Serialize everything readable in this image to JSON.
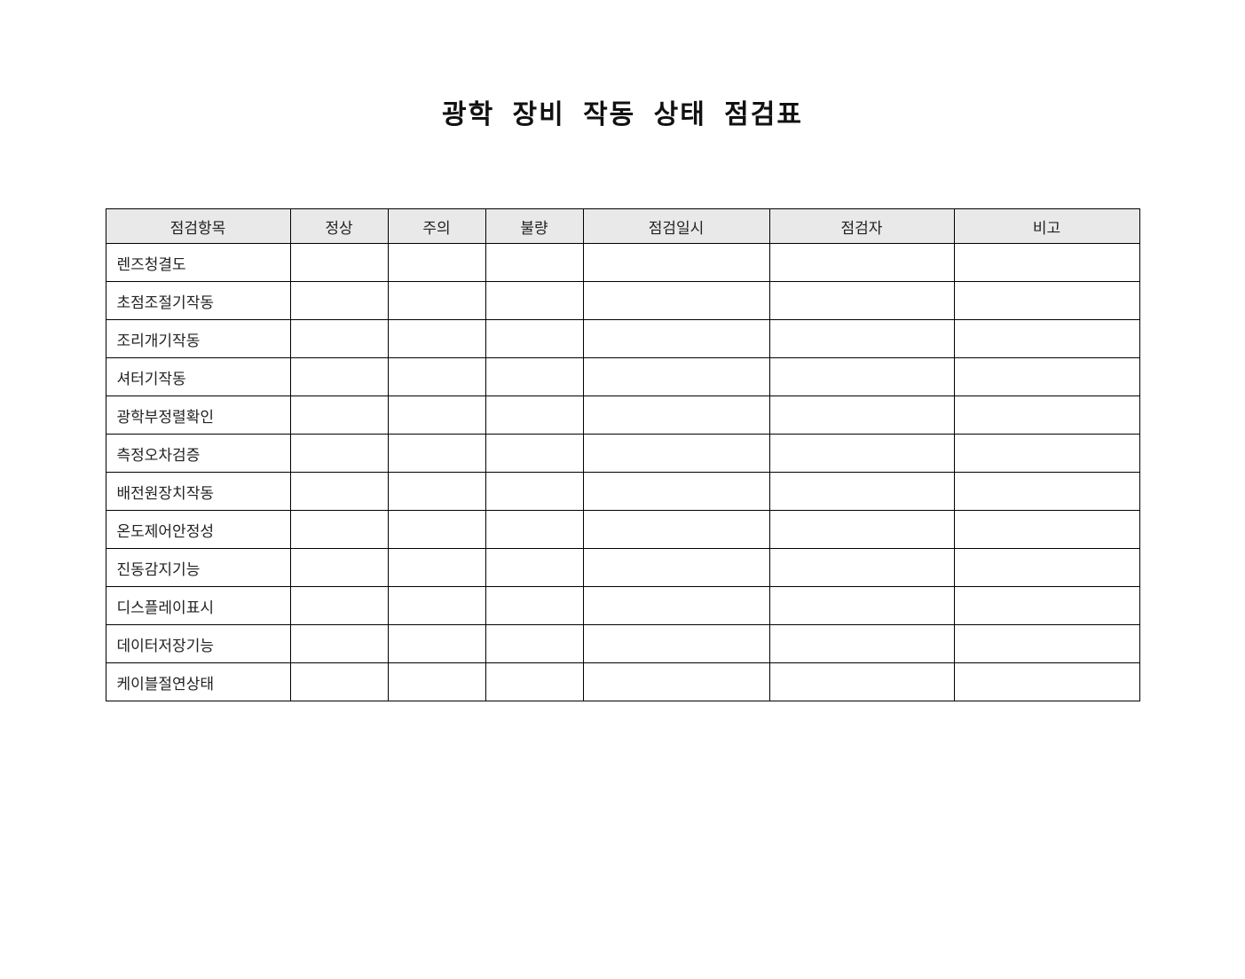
{
  "page": {
    "title": "광학 장비 작동 상태 점검표"
  },
  "checklist_table": {
    "headers": [
      "점검항목",
      "정상",
      "주의",
      "불량",
      "점검일시",
      "점검자",
      "비고"
    ],
    "rows": [
      {
        "label": "렌즈청결도",
        "cells": [
          "",
          "",
          "",
          "",
          "",
          ""
        ]
      },
      {
        "label": "초점조절기작동",
        "cells": [
          "",
          "",
          "",
          "",
          "",
          ""
        ]
      },
      {
        "label": "조리개기작동",
        "cells": [
          "",
          "",
          "",
          "",
          "",
          ""
        ]
      },
      {
        "label": "셔터기작동",
        "cells": [
          "",
          "",
          "",
          "",
          "",
          ""
        ]
      },
      {
        "label": "광학부정렬확인",
        "cells": [
          "",
          "",
          "",
          "",
          "",
          ""
        ]
      },
      {
        "label": "측정오차검증",
        "cells": [
          "",
          "",
          "",
          "",
          "",
          ""
        ]
      },
      {
        "label": "배전원장치작동",
        "cells": [
          "",
          "",
          "",
          "",
          "",
          ""
        ]
      },
      {
        "label": "온도제어안정성",
        "cells": [
          "",
          "",
          "",
          "",
          "",
          ""
        ]
      },
      {
        "label": "진동감지기능",
        "cells": [
          "",
          "",
          "",
          "",
          "",
          ""
        ]
      },
      {
        "label": "디스플레이표시",
        "cells": [
          "",
          "",
          "",
          "",
          "",
          ""
        ]
      },
      {
        "label": "데이터저장기능",
        "cells": [
          "",
          "",
          "",
          "",
          "",
          ""
        ]
      },
      {
        "label": "케이블절연상태",
        "cells": [
          "",
          "",
          "",
          "",
          "",
          ""
        ]
      }
    ]
  },
  "colors": {
    "header_bg": "#e9e9e9",
    "border": "#000000",
    "text": "#222222",
    "title_color": "#111111",
    "page_bg": "#ffffff"
  }
}
